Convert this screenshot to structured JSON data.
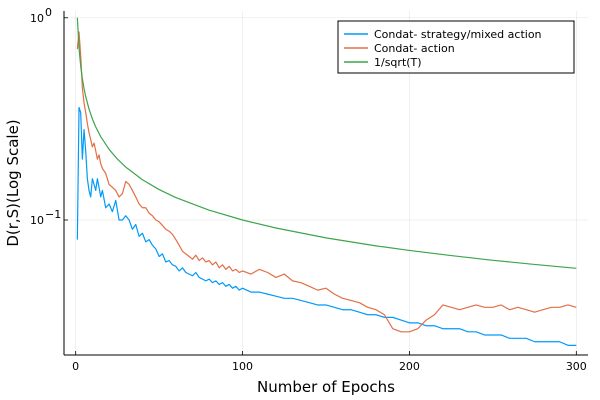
{
  "chart_data": {
    "type": "line",
    "xlabel": "Number of Epochs",
    "ylabel": "D(r,S)(Log Scale)",
    "xlim": [
      -7,
      307
    ],
    "ylim": [
      0.0215,
      1.08
    ],
    "yscale": "log",
    "grid": true,
    "legend_position": "top-right",
    "x_ticks": [
      0,
      100,
      200,
      300
    ],
    "x_tick_labels": [
      "0",
      "100",
      "200",
      "300"
    ],
    "y_ticks": [
      {
        "value": 1.0,
        "base": "10",
        "exp": "0"
      },
      {
        "value": 0.1,
        "base": "10",
        "exp": "−1"
      }
    ],
    "series": [
      {
        "name": "Condat- strategy/mixed action",
        "color": "#009AFA",
        "x": [
          1,
          2,
          3,
          4,
          5,
          6,
          7,
          8,
          9,
          10,
          11,
          12,
          13,
          14,
          15,
          16,
          18,
          20,
          22,
          24,
          26,
          28,
          30,
          32,
          34,
          36,
          38,
          40,
          42,
          44,
          46,
          48,
          50,
          52,
          54,
          56,
          58,
          60,
          62,
          64,
          66,
          68,
          70,
          72,
          74,
          76,
          78,
          80,
          82,
          84,
          86,
          88,
          90,
          92,
          94,
          96,
          98,
          100,
          105,
          110,
          115,
          120,
          125,
          130,
          135,
          140,
          145,
          150,
          155,
          160,
          165,
          170,
          175,
          180,
          185,
          190,
          195,
          200,
          205,
          210,
          215,
          220,
          225,
          230,
          235,
          240,
          245,
          250,
          255,
          260,
          265,
          270,
          275,
          280,
          285,
          290,
          295,
          300
        ],
        "values": [
          0.08,
          0.36,
          0.34,
          0.2,
          0.28,
          0.22,
          0.16,
          0.14,
          0.13,
          0.16,
          0.15,
          0.14,
          0.16,
          0.145,
          0.13,
          0.14,
          0.115,
          0.12,
          0.11,
          0.125,
          0.1,
          0.1,
          0.105,
          0.1,
          0.09,
          0.095,
          0.083,
          0.086,
          0.078,
          0.08,
          0.075,
          0.072,
          0.066,
          0.068,
          0.062,
          0.063,
          0.06,
          0.059,
          0.056,
          0.058,
          0.055,
          0.054,
          0.053,
          0.055,
          0.052,
          0.051,
          0.05,
          0.051,
          0.049,
          0.05,
          0.048,
          0.049,
          0.047,
          0.048,
          0.046,
          0.047,
          0.045,
          0.046,
          0.044,
          0.044,
          0.043,
          0.042,
          0.041,
          0.041,
          0.04,
          0.039,
          0.038,
          0.038,
          0.037,
          0.036,
          0.036,
          0.035,
          0.034,
          0.034,
          0.033,
          0.033,
          0.032,
          0.031,
          0.031,
          0.03,
          0.03,
          0.029,
          0.029,
          0.029,
          0.028,
          0.028,
          0.027,
          0.027,
          0.027,
          0.026,
          0.026,
          0.026,
          0.025,
          0.025,
          0.025,
          0.025,
          0.024,
          0.024
        ]
      },
      {
        "name": "Condat- action",
        "color": "#E26F46",
        "x": [
          1,
          2,
          3,
          4,
          5,
          6,
          7,
          8,
          9,
          10,
          11,
          12,
          13,
          14,
          15,
          16,
          18,
          20,
          22,
          24,
          26,
          28,
          30,
          32,
          34,
          36,
          38,
          40,
          42,
          44,
          46,
          48,
          50,
          52,
          54,
          56,
          58,
          60,
          62,
          64,
          66,
          68,
          70,
          72,
          74,
          76,
          78,
          80,
          82,
          84,
          86,
          88,
          90,
          92,
          94,
          96,
          98,
          100,
          105,
          110,
          115,
          120,
          125,
          130,
          135,
          140,
          145,
          150,
          155,
          160,
          165,
          170,
          175,
          180,
          185,
          190,
          195,
          200,
          205,
          210,
          215,
          220,
          225,
          230,
          235,
          240,
          245,
          250,
          255,
          260,
          265,
          270,
          275,
          280,
          285,
          290,
          295,
          300
        ],
        "values": [
          0.7,
          0.85,
          0.65,
          0.45,
          0.38,
          0.34,
          0.3,
          0.27,
          0.25,
          0.23,
          0.24,
          0.22,
          0.2,
          0.21,
          0.19,
          0.18,
          0.17,
          0.15,
          0.145,
          0.14,
          0.13,
          0.135,
          0.155,
          0.15,
          0.14,
          0.13,
          0.12,
          0.115,
          0.115,
          0.108,
          0.105,
          0.1,
          0.098,
          0.094,
          0.09,
          0.088,
          0.085,
          0.08,
          0.075,
          0.07,
          0.068,
          0.066,
          0.064,
          0.067,
          0.063,
          0.065,
          0.062,
          0.063,
          0.06,
          0.062,
          0.058,
          0.06,
          0.057,
          0.059,
          0.056,
          0.057,
          0.055,
          0.056,
          0.054,
          0.057,
          0.055,
          0.052,
          0.054,
          0.05,
          0.049,
          0.047,
          0.045,
          0.046,
          0.043,
          0.041,
          0.04,
          0.039,
          0.037,
          0.036,
          0.034,
          0.029,
          0.028,
          0.028,
          0.029,
          0.032,
          0.034,
          0.038,
          0.037,
          0.036,
          0.037,
          0.038,
          0.037,
          0.037,
          0.038,
          0.036,
          0.037,
          0.036,
          0.035,
          0.036,
          0.037,
          0.037,
          0.038,
          0.037
        ]
      },
      {
        "name": "1/sqrt(T)",
        "color": "#3EA44E",
        "x": [
          1,
          2,
          3,
          4,
          5,
          6,
          8,
          10,
          12,
          15,
          20,
          25,
          30,
          40,
          50,
          60,
          80,
          100,
          120,
          150,
          180,
          200,
          225,
          250,
          275,
          300
        ],
        "values": [
          1.0,
          0.7071,
          0.5774,
          0.5,
          0.4472,
          0.4082,
          0.3536,
          0.3162,
          0.2887,
          0.2582,
          0.2236,
          0.2,
          0.1826,
          0.1581,
          0.1414,
          0.1291,
          0.1118,
          0.1,
          0.0913,
          0.0816,
          0.0745,
          0.0707,
          0.0667,
          0.0632,
          0.0603,
          0.0577
        ]
      }
    ]
  }
}
